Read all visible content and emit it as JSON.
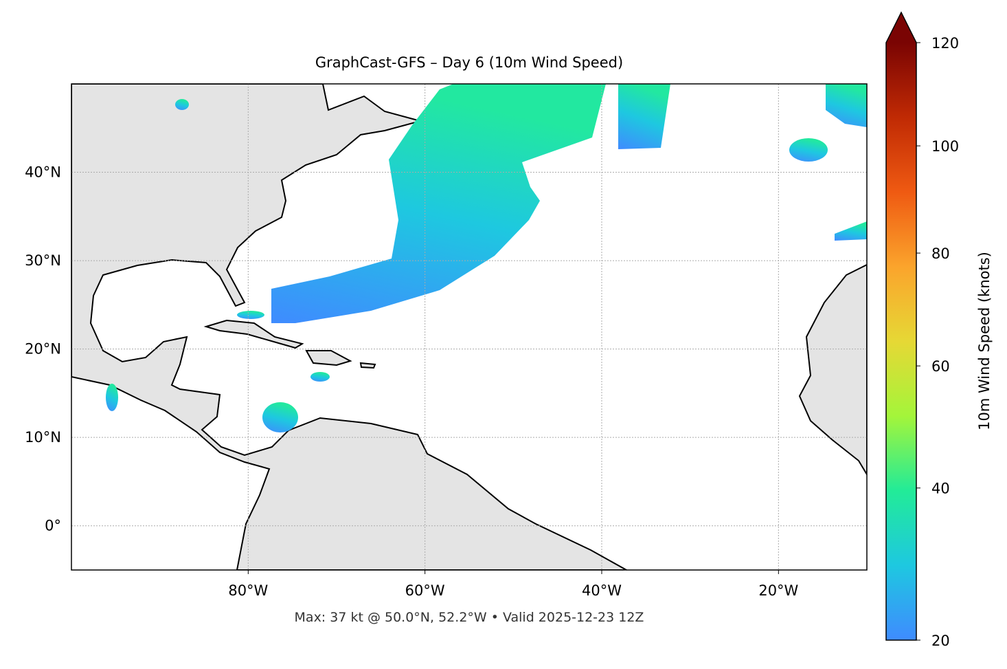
{
  "chart_data": {
    "type": "map",
    "title": "GraphCast-GFS – Day 6 (10m Wind Speed)",
    "annotation": "Max: 37 kt @ 50.0°N, 52.2°W • Valid 2025-12-23 12Z",
    "xlim": [
      -100,
      -10
    ],
    "ylim": [
      -5,
      50
    ],
    "xticks": [
      {
        "value": -80,
        "label": "80°W"
      },
      {
        "value": -60,
        "label": "60°W"
      },
      {
        "value": -40,
        "label": "40°W"
      },
      {
        "value": -20,
        "label": "20°W"
      }
    ],
    "yticks": [
      {
        "value": 0,
        "label": "0°"
      },
      {
        "value": 10,
        "label": "10°N"
      },
      {
        "value": 20,
        "label": "20°N"
      },
      {
        "value": 30,
        "label": "30°N"
      },
      {
        "value": 40,
        "label": "40°N"
      }
    ],
    "grid": true,
    "colorbar": {
      "label": "10m Wind Speed (knots)",
      "lim": [
        20,
        120
      ],
      "ticks": [
        20,
        40,
        60,
        80,
        100,
        120
      ],
      "gamma": 0.85,
      "extend": "max",
      "colors": [
        "#3f8bff",
        "#1ec8e0",
        "#22eb98",
        "#a4f53a",
        "#e6d835",
        "#fba42c",
        "#ef5a12",
        "#c02a04",
        "#7a0403"
      ]
    }
  }
}
